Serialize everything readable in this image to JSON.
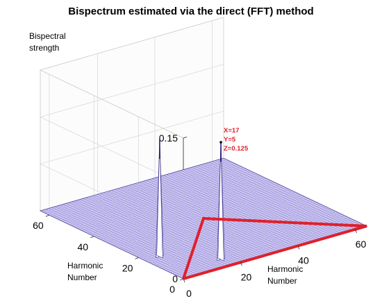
{
  "chart_data": {
    "type": "surface",
    "title": "Bispectrum estimated via the direct (FFT) method",
    "zlabel_lines": [
      "Bispectral",
      "strength"
    ],
    "ylabel_lines": [
      "Harmonic",
      "Number"
    ],
    "xlabel_lines": [
      "Harmonic",
      "Number"
    ],
    "xlim": [
      0,
      64
    ],
    "ylim": [
      0,
      64
    ],
    "zlim": [
      0,
      0.15
    ],
    "x_ticks": [
      "0",
      "20",
      "40",
      "60"
    ],
    "y_ticks": [
      "0",
      "20",
      "40",
      "60"
    ],
    "z_ticks": [
      "0",
      "0.05",
      "0.1",
      "0.15"
    ],
    "grid": true,
    "surface_color": "#6a5acd",
    "highlight_color": "#e0202a",
    "peaks": [
      {
        "x": 17,
        "y": 5,
        "z": 0.125
      },
      {
        "x": 5,
        "y": 17,
        "z": 0.125
      }
    ],
    "highlight_region": [
      [
        0,
        0
      ],
      [
        64,
        0
      ],
      [
        32,
        32
      ],
      [
        0,
        0
      ]
    ],
    "annotation_lines": [
      "X=17",
      "Y=5",
      "Z=0.125"
    ]
  }
}
